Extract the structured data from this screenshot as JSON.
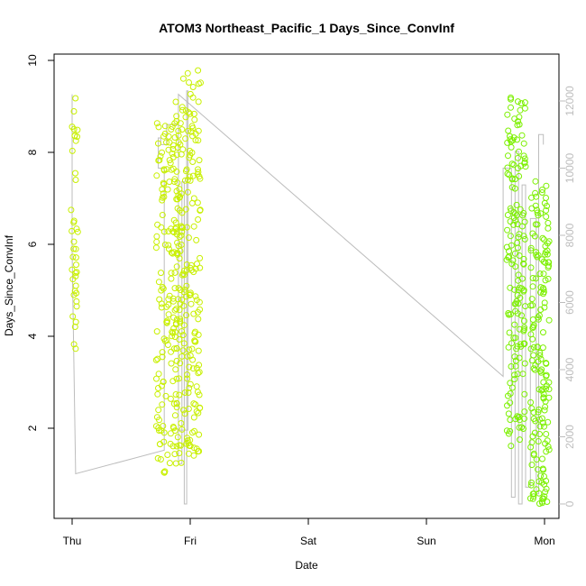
{
  "chart_data": {
    "type": "scatter",
    "title": "ATOM3 Northeast_Pacific_1 Days_Since_ConvInf",
    "xlabel": "Date",
    "ylabel": "Days_Since_ConvInf",
    "xlim": [
      "Thu",
      "Mon"
    ],
    "ylim": [
      0,
      10
    ],
    "y2lim": [
      0,
      12500
    ],
    "x_ticks": [
      "Thu",
      "Fri",
      "Sat",
      "Sun",
      "Mon"
    ],
    "y_ticks": [
      2,
      4,
      6,
      8,
      10
    ],
    "y2_ticks": [
      0,
      2000,
      4000,
      6000,
      8000,
      10000,
      12000
    ],
    "grid": false,
    "legend": "none",
    "colors": {
      "points_early": "#c8f000",
      "points_late": "#7cf000",
      "line": "#bdbdbd",
      "axis": "#000000",
      "right_axis": "#bdbdbd"
    },
    "series": [
      {
        "type": "scatter-clusters",
        "clusters": [
          {
            "x": 0.02,
            "xwidth": 0.06,
            "y_min": 3.7,
            "y_max": 9.2,
            "n": 40
          },
          {
            "x": 0.82,
            "xwidth": 0.22,
            "y_min": 1.0,
            "y_max": 8.7,
            "n": 170
          },
          {
            "x": 0.98,
            "xwidth": 0.22,
            "y_min": 1.4,
            "y_max": 9.8,
            "n": 200
          },
          {
            "x": 3.76,
            "xwidth": 0.16,
            "y_min": 1.6,
            "y_max": 9.4,
            "n": 160
          },
          {
            "x": 3.96,
            "xwidth": 0.16,
            "y_min": 0.35,
            "y_max": 7.4,
            "n": 170
          }
        ]
      },
      {
        "type": "line",
        "axis": "right",
        "x": [
          0.0,
          0.0,
          0.03,
          0.03,
          0.78,
          0.78,
          0.73,
          0.73,
          0.75,
          0.75,
          0.8,
          0.8,
          0.9,
          0.9,
          0.93,
          0.93,
          0.95,
          0.95,
          0.97,
          0.97,
          0.98,
          0.98,
          0.9,
          0.9,
          3.65,
          3.65,
          3.72,
          3.72,
          3.75,
          3.75,
          3.78,
          3.78,
          3.81,
          3.81,
          3.84,
          3.84,
          3.88,
          3.88,
          3.93,
          3.93,
          3.95,
          3.95,
          3.99,
          3.99
        ],
        "y": [
          12200,
          7500,
          900,
          900,
          1600,
          10000,
          10000,
          10900,
          10900,
          10700,
          10700,
          11300,
          11300,
          1200,
          1200,
          9600,
          9600,
          0,
          0,
          12300,
          12300,
          2200,
          2200,
          12200,
          3800,
          10000,
          10000,
          200,
          200,
          10500,
          10500,
          0,
          0,
          9500,
          9500,
          500,
          500,
          8500,
          8500,
          300,
          300,
          11000,
          11000,
          10700
        ]
      }
    ]
  }
}
